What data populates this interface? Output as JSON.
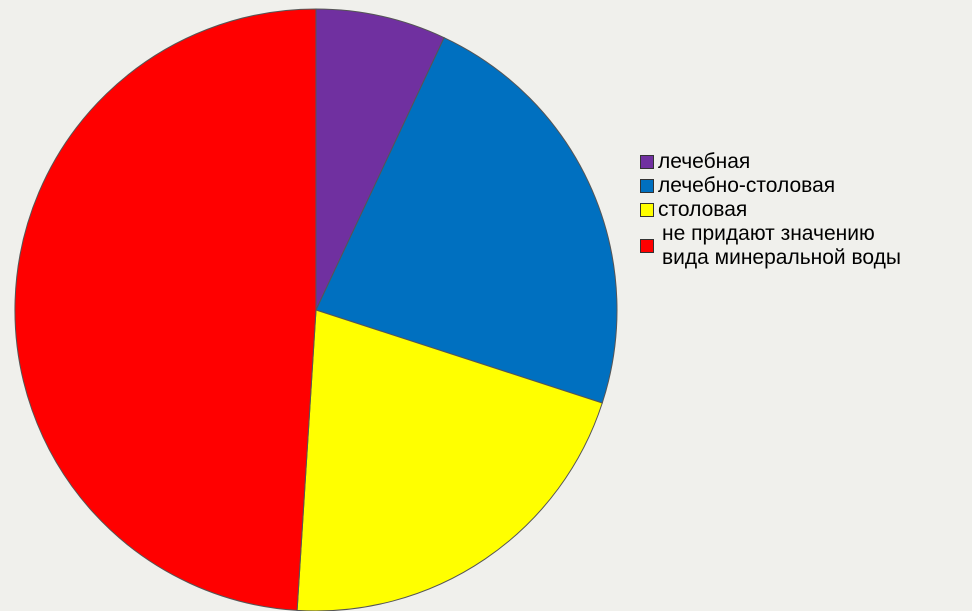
{
  "chart_data": {
    "type": "pie",
    "start_angle_deg": 0,
    "direction": "clockwise",
    "slices": [
      {
        "label": "лечебная",
        "value": 7,
        "color": "#7030a0"
      },
      {
        "label": "лечебно-столовая",
        "value": 23,
        "color": "#0070c0"
      },
      {
        "label": "столовая",
        "value": 21,
        "color": "#ffff00"
      },
      {
        "label": "не придают значению\nвида минеральной воды",
        "value": 49,
        "color": "#ff0000"
      }
    ],
    "legend_position": "right"
  }
}
